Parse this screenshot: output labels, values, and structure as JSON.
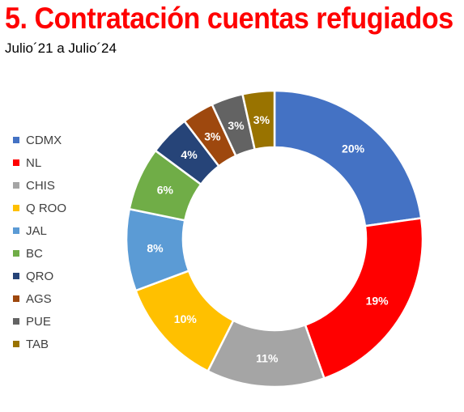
{
  "title": "5. Contratación cuentas refugiados",
  "subtitle": "Julio´21 a Julio´24",
  "chart_data": {
    "type": "pie",
    "donut": true,
    "start_angle_deg": 0,
    "direction": "clockwise",
    "legend_position": "left",
    "slices": [
      {
        "name": "CDMX",
        "value": 23,
        "label": "20%",
        "color": "#4472c4"
      },
      {
        "name": "NL",
        "value": 22,
        "label": "19%",
        "color": "#ff0000"
      },
      {
        "name": "CHIS",
        "value": 13,
        "label": "11%",
        "color": "#a5a5a5"
      },
      {
        "name": "Q ROO",
        "value": 12,
        "label": "10%",
        "color": "#ffc000"
      },
      {
        "name": "JAL",
        "value": 9,
        "label": "8%",
        "color": "#5b9bd5"
      },
      {
        "name": "BC",
        "value": 7,
        "label": "6%",
        "color": "#70ad47"
      },
      {
        "name": "QRO",
        "value": 4.5,
        "label": "4%",
        "color": "#264478"
      },
      {
        "name": "AGS",
        "value": 3.5,
        "label": "3%",
        "color": "#9e480e"
      },
      {
        "name": "PUE",
        "value": 3.5,
        "label": "3%",
        "color": "#636363"
      },
      {
        "name": "TAB",
        "value": 3.5,
        "label": "3%",
        "color": "#997300"
      }
    ]
  }
}
